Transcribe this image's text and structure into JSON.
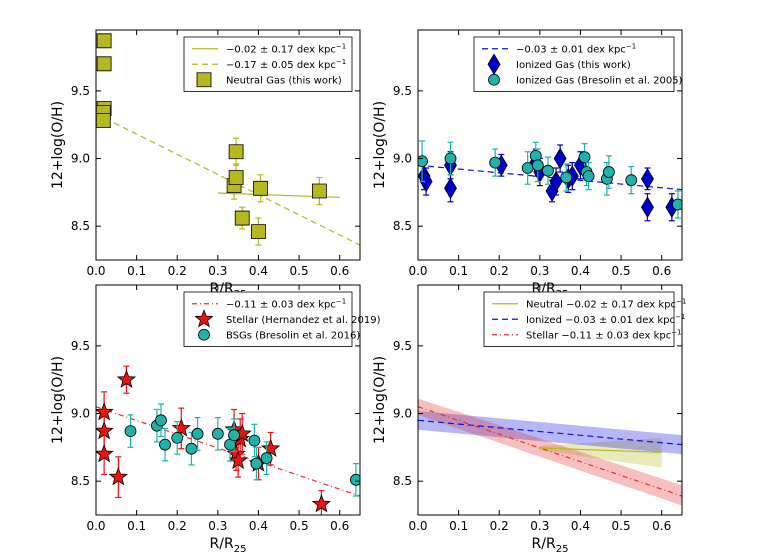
{
  "chart_data": [
    {
      "type": "scatter",
      "panel": "top-left",
      "xlabel": "R/R",
      "xlabel_sub": "25",
      "ylabel": "12+log(O/H)",
      "xlim": [
        0.0,
        0.65
      ],
      "ylim": [
        8.25,
        9.95
      ],
      "xticks": [
        "0.0",
        "0.1",
        "0.2",
        "0.3",
        "0.4",
        "0.5",
        "0.6"
      ],
      "yticks": [
        "8.5",
        "9.0",
        "9.5"
      ],
      "legend_placement": "top-right",
      "series": [
        {
          "name": "−0.02 ± 0.17 dex kpc",
          "unit_sup": "−1",
          "kind": "line",
          "style": "solid",
          "color": "#b5b820",
          "x": [
            0.3,
            0.6
          ],
          "y": [
            8.745,
            8.713
          ]
        },
        {
          "name": "−0.17 ± 0.05 dex kpc",
          "unit_sup": "−1",
          "kind": "line",
          "style": "dashed",
          "color": "#b5b820",
          "x": [
            0.0,
            0.65
          ],
          "y": [
            9.33,
            8.36
          ]
        },
        {
          "name": "Neutral Gas (this work)",
          "kind": "markers",
          "marker": "square",
          "color": "#b5b820",
          "x": [
            0.02,
            0.02,
            0.02,
            0.018,
            0.018,
            0.34,
            0.345,
            0.345,
            0.36,
            0.4,
            0.405,
            0.55
          ],
          "y": [
            9.87,
            9.7,
            9.37,
            9.34,
            9.28,
            8.8,
            9.05,
            8.86,
            8.56,
            8.46,
            8.78,
            8.76
          ],
          "err": [
            0.0,
            0.0,
            0.0,
            0.0,
            0.0,
            0.1,
            0.1,
            0.1,
            0.08,
            0.1,
            0.1,
            0.1
          ]
        }
      ]
    },
    {
      "type": "scatter",
      "panel": "top-right",
      "xlabel": "R/R",
      "xlabel_sub": "25",
      "ylabel": "12+log(O/H)",
      "xlim": [
        0.0,
        0.65
      ],
      "ylim": [
        8.25,
        9.95
      ],
      "xticks": [
        "0.0",
        "0.1",
        "0.2",
        "0.3",
        "0.4",
        "0.5",
        "0.6"
      ],
      "yticks": [
        "8.5",
        "9.0",
        "9.5"
      ],
      "legend_placement": "top-right",
      "series": [
        {
          "name": "−0.03 ± 0.01 dex kpc",
          "unit_sup": "−1",
          "kind": "line",
          "style": "dashed",
          "color": "#1010dd",
          "x": [
            0.0,
            0.65
          ],
          "y": [
            8.95,
            8.77
          ]
        },
        {
          "name": "Ionized Gas (this work)",
          "kind": "markers",
          "marker": "diamond",
          "color": "#0000cc",
          "x": [
            0.015,
            0.02,
            0.08,
            0.08,
            0.205,
            0.29,
            0.3,
            0.33,
            0.34,
            0.35,
            0.37,
            0.38,
            0.4,
            0.565,
            0.565,
            0.625
          ],
          "y": [
            8.87,
            8.83,
            8.95,
            8.78,
            8.95,
            8.97,
            8.9,
            8.76,
            8.83,
            9.0,
            8.85,
            8.87,
            8.95,
            8.85,
            8.64,
            8.64
          ],
          "err": [
            0.1,
            0.1,
            0.1,
            0.1,
            0.08,
            0.1,
            0.1,
            0.08,
            0.1,
            0.1,
            0.1,
            0.1,
            0.1,
            0.08,
            0.1,
            0.1
          ]
        },
        {
          "name": "Ionized Gas (Bresolin et al. 2005)",
          "kind": "markers",
          "marker": "circle",
          "color": "#20b2aa",
          "x": [
            0.01,
            0.08,
            0.19,
            0.27,
            0.29,
            0.295,
            0.32,
            0.365,
            0.41,
            0.415,
            0.42,
            0.465,
            0.47,
            0.525,
            0.64
          ],
          "y": [
            8.98,
            9.0,
            8.97,
            8.93,
            9.02,
            8.95,
            8.91,
            8.86,
            9.01,
            8.9,
            8.87,
            8.85,
            8.9,
            8.84,
            8.66
          ],
          "err": [
            0.15,
            0.12,
            0.1,
            0.12,
            0.1,
            0.12,
            0.1,
            0.1,
            0.1,
            0.1,
            0.1,
            0.12,
            0.12,
            0.1,
            0.1
          ]
        }
      ]
    },
    {
      "type": "scatter",
      "panel": "bottom-left",
      "xlabel": "R/R",
      "xlabel_sub": "25",
      "ylabel": "12+log(O/H)",
      "xlim": [
        0.0,
        0.65
      ],
      "ylim": [
        8.25,
        9.95
      ],
      "xticks": [
        "0.0",
        "0.1",
        "0.2",
        "0.3",
        "0.4",
        "0.5",
        "0.6"
      ],
      "yticks": [
        "8.5",
        "9.0",
        "9.5"
      ],
      "legend_placement": "top-right",
      "series": [
        {
          "name": "−0.11 ± 0.03 dex kpc",
          "unit_sup": "−1",
          "kind": "line",
          "style": "dashdot",
          "color": "#e03030",
          "x": [
            0.0,
            0.65
          ],
          "y": [
            9.05,
            8.39
          ]
        },
        {
          "name": "Stellar (Hernandez et al. 2019)",
          "kind": "markers",
          "marker": "star",
          "color": "#ee1111",
          "x": [
            0.02,
            0.02,
            0.02,
            0.055,
            0.075,
            0.21,
            0.34,
            0.345,
            0.35,
            0.355,
            0.36,
            0.4,
            0.43,
            0.555
          ],
          "y": [
            9.01,
            8.87,
            8.7,
            8.53,
            9.25,
            8.89,
            8.88,
            8.7,
            8.65,
            8.81,
            8.85,
            8.63,
            8.74,
            8.33
          ],
          "err": [
            0.15,
            0.15,
            0.15,
            0.15,
            0.1,
            0.15,
            0.15,
            0.12,
            0.12,
            0.15,
            0.15,
            0.12,
            0.12,
            0.1
          ]
        },
        {
          "name": "BSGs (Bresolin et al. 2016)",
          "kind": "markers",
          "marker": "circle",
          "color": "#20b2aa",
          "x": [
            0.085,
            0.15,
            0.16,
            0.17,
            0.2,
            0.235,
            0.25,
            0.3,
            0.33,
            0.34,
            0.39,
            0.395,
            0.42,
            0.64
          ],
          "y": [
            8.87,
            8.91,
            8.95,
            8.77,
            8.82,
            8.74,
            8.85,
            8.85,
            8.77,
            8.84,
            8.8,
            8.63,
            8.67,
            8.51
          ],
          "err": [
            0.12,
            0.12,
            0.12,
            0.12,
            0.12,
            0.12,
            0.12,
            0.12,
            0.12,
            0.12,
            0.12,
            0.12,
            0.12,
            0.12
          ]
        }
      ]
    },
    {
      "type": "line",
      "panel": "bottom-right",
      "xlabel": "R/R",
      "xlabel_sub": "25",
      "ylabel": "12+log(O/H)",
      "xlim": [
        0.0,
        0.65
      ],
      "ylim": [
        8.25,
        9.95
      ],
      "xticks": [
        "0.0",
        "0.1",
        "0.2",
        "0.3",
        "0.4",
        "0.5",
        "0.6"
      ],
      "yticks": [
        "8.5",
        "9.0",
        "9.5"
      ],
      "legend_placement": "top-right",
      "series": [
        {
          "name": "Neutral −0.02 ± 0.17 dex kpc",
          "unit_sup": "−1",
          "style": "solid",
          "color": "#b5b820",
          "x": [
            0.3,
            0.6
          ],
          "y": [
            8.745,
            8.713
          ],
          "band": {
            "x": [
              0.3,
              0.6
            ],
            "lower": [
              8.73,
              8.6
            ],
            "upper": [
              8.76,
              8.82
            ]
          }
        },
        {
          "name": "Ionized −0.03 ± 0.01 dex kpc",
          "unit_sup": "−1",
          "style": "dashed",
          "color": "#1010dd",
          "x": [
            0.0,
            0.65
          ],
          "y": [
            8.95,
            8.77
          ],
          "band": {
            "x": [
              0.0,
              0.65
            ],
            "lower": [
              8.88,
              8.7
            ],
            "upper": [
              9.02,
              8.84
            ]
          }
        },
        {
          "name": "Stellar −0.11 ± 0.03 dex kpc",
          "unit_sup": "−1",
          "style": "dashdot",
          "color": "#e03030",
          "x": [
            0.0,
            0.65
          ],
          "y": [
            9.05,
            8.39
          ],
          "band": {
            "x": [
              0.0,
              0.65
            ],
            "lower": [
              8.99,
              8.32
            ],
            "upper": [
              9.11,
              8.47
            ]
          }
        }
      ]
    }
  ]
}
